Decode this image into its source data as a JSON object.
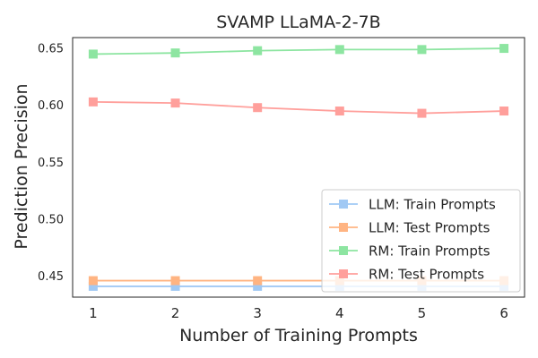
{
  "chart_data": {
    "type": "line",
    "title": "SVAMP LLaMA-2-7B",
    "xlabel": "Number of Training Prompts",
    "ylabel": "Prediction Precision",
    "x": [
      1,
      2,
      3,
      4,
      5,
      6
    ],
    "xticks": [
      "1",
      "2",
      "3",
      "4",
      "5",
      "6"
    ],
    "yticks": [
      "0.45",
      "0.50",
      "0.55",
      "0.60",
      "0.65"
    ],
    "ytick_values": [
      0.45,
      0.5,
      0.55,
      0.6,
      0.65
    ],
    "ylim": [
      0.4315,
      0.6595
    ],
    "xlim": [
      0.75,
      6.25
    ],
    "grid": false,
    "legend_position": "lower-right",
    "series": [
      {
        "name": "LLM: Train Prompts",
        "color": "#a1c9f4",
        "marker": "square",
        "values": [
          0.441,
          0.441,
          0.441,
          0.441,
          0.441,
          0.441
        ]
      },
      {
        "name": "LLM: Test Prompts",
        "color": "#ffb482",
        "marker": "square",
        "values": [
          0.446,
          0.446,
          0.446,
          0.446,
          0.446,
          0.446
        ]
      },
      {
        "name": "RM: Train Prompts",
        "color": "#8de5a1",
        "marker": "square",
        "values": [
          0.645,
          0.646,
          0.648,
          0.649,
          0.649,
          0.65
        ]
      },
      {
        "name": "RM: Test Prompts",
        "color": "#ff9f9b",
        "marker": "square",
        "values": [
          0.603,
          0.602,
          0.598,
          0.595,
          0.593,
          0.595
        ]
      }
    ]
  }
}
